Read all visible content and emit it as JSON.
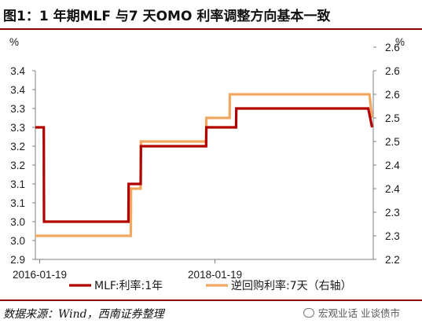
{
  "figure": {
    "title": "图1：1 年期MLF 与7 天OMO 利率调整方向基本一致",
    "source": "数据来源：Wind，西南证券整理",
    "watermark": "宏观业话 业谈债市"
  },
  "chart_data": {
    "type": "line",
    "left_axis": {
      "unit": "%",
      "range": [
        2.9,
        3.4
      ],
      "tick_values": [
        2.9,
        2.95,
        3.0,
        3.05,
        3.1,
        3.15,
        3.2,
        3.25,
        3.3,
        3.35,
        3.4
      ],
      "tick_labels": [
        "2.9",
        "3.0",
        "3.0",
        "3.1",
        "3.1",
        "3.2",
        "3.2",
        "3.3",
        "3.3",
        "3.4",
        "3.4"
      ]
    },
    "right_axis": {
      "unit": "%",
      "range": [
        2.2,
        2.6
      ],
      "tick_values": [
        2.2,
        2.25,
        2.3,
        2.35,
        2.4,
        2.45,
        2.5,
        2.55,
        2.6,
        2.65
      ],
      "tick_labels": [
        "2.2",
        "2.3",
        "2.3",
        "2.4",
        "2.4",
        "2.5",
        "2.5",
        "2.6",
        "2.6",
        "2.6"
      ]
    },
    "x_axis": {
      "range": [
        "2016-01-01",
        "2019-11-10"
      ],
      "tick_labels": [
        {
          "date": "2016-01-19",
          "label": "2016-01-19"
        },
        {
          "date": "2018-01-19",
          "label": "2018-01-19"
        }
      ]
    },
    "grid": false,
    "legend_position": "bottom",
    "series": [
      {
        "name": "MLF:利率:1年",
        "axis": "left",
        "color": "#b00000",
        "points": [
          [
            "2016-01-01",
            3.25
          ],
          [
            "2016-02-05",
            3.25
          ],
          [
            "2016-02-06",
            3.0
          ],
          [
            "2017-01-23",
            3.0
          ],
          [
            "2017-01-24",
            3.1
          ],
          [
            "2017-03-15",
            3.1
          ],
          [
            "2017-03-16",
            3.2
          ],
          [
            "2017-12-13",
            3.2
          ],
          [
            "2017-12-14",
            3.25
          ],
          [
            "2018-04-17",
            3.25
          ],
          [
            "2018-04-18",
            3.3
          ],
          [
            "2019-10-20",
            3.3
          ],
          [
            "2019-11-05",
            3.25
          ]
        ]
      },
      {
        "name": "逆回购利率:7天（右轴）",
        "axis": "right",
        "color": "#f0a860",
        "points": [
          [
            "2016-01-01",
            2.25
          ],
          [
            "2017-02-02",
            2.25
          ],
          [
            "2017-02-03",
            2.35
          ],
          [
            "2017-03-15",
            2.35
          ],
          [
            "2017-03-16",
            2.45
          ],
          [
            "2017-12-13",
            2.45
          ],
          [
            "2017-12-14",
            2.5
          ],
          [
            "2018-03-21",
            2.5
          ],
          [
            "2018-03-22",
            2.55
          ],
          [
            "2019-10-25",
            2.55
          ],
          [
            "2019-11-05",
            2.5
          ]
        ]
      }
    ]
  }
}
